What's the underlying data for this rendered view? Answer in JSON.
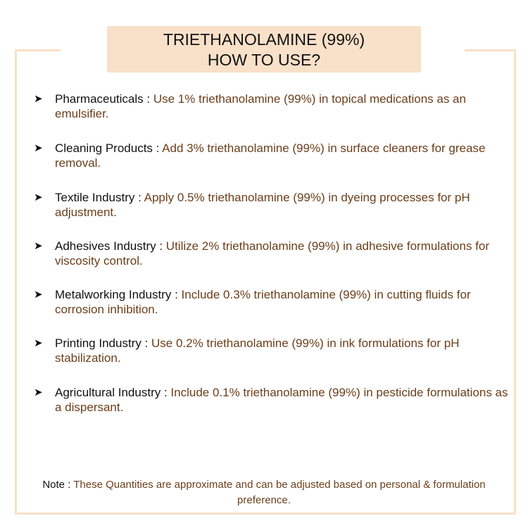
{
  "title": {
    "line1": "TRIETHANOLAMINE (99%)",
    "line2": "HOW TO USE?"
  },
  "items": [
    {
      "label": "Pharmaceuticals :",
      "text": " Use 1% triethanolamine (99%) in topical medications as an emulsifier."
    },
    {
      "label": "Cleaning Products :",
      "text": " Add 3% triethanolamine (99%) in surface cleaners for grease removal."
    },
    {
      "label": "Textile Industry :",
      "text": " Apply 0.5% triethanolamine (99%) in dyeing processes for pH adjustment."
    },
    {
      "label": "Adhesives Industry :",
      "text": " Utilize 2% triethanolamine (99%) in adhesive formulations for viscosity control."
    },
    {
      "label": "Metalworking Industry :",
      "text": " Include 0.3% triethanolamine (99%) in cutting fluids for corrosion inhibition."
    },
    {
      "label": "Printing Industry :",
      "text": " Use 0.2% triethanolamine (99%) in ink formulations for pH stabilization."
    },
    {
      "label": "Agricultural Industry :",
      "text": " Include 0.1% triethanolamine (99%) in pesticide formulations as a dispersant."
    }
  ],
  "bullet": "➤",
  "note": {
    "label": "Note :",
    "text": " These Quantities are approximate and can be adjusted based on personal & formulation preference."
  },
  "colors": {
    "accent": "#f9e0c9",
    "text": "#6b3e1a",
    "label": "#111111"
  }
}
